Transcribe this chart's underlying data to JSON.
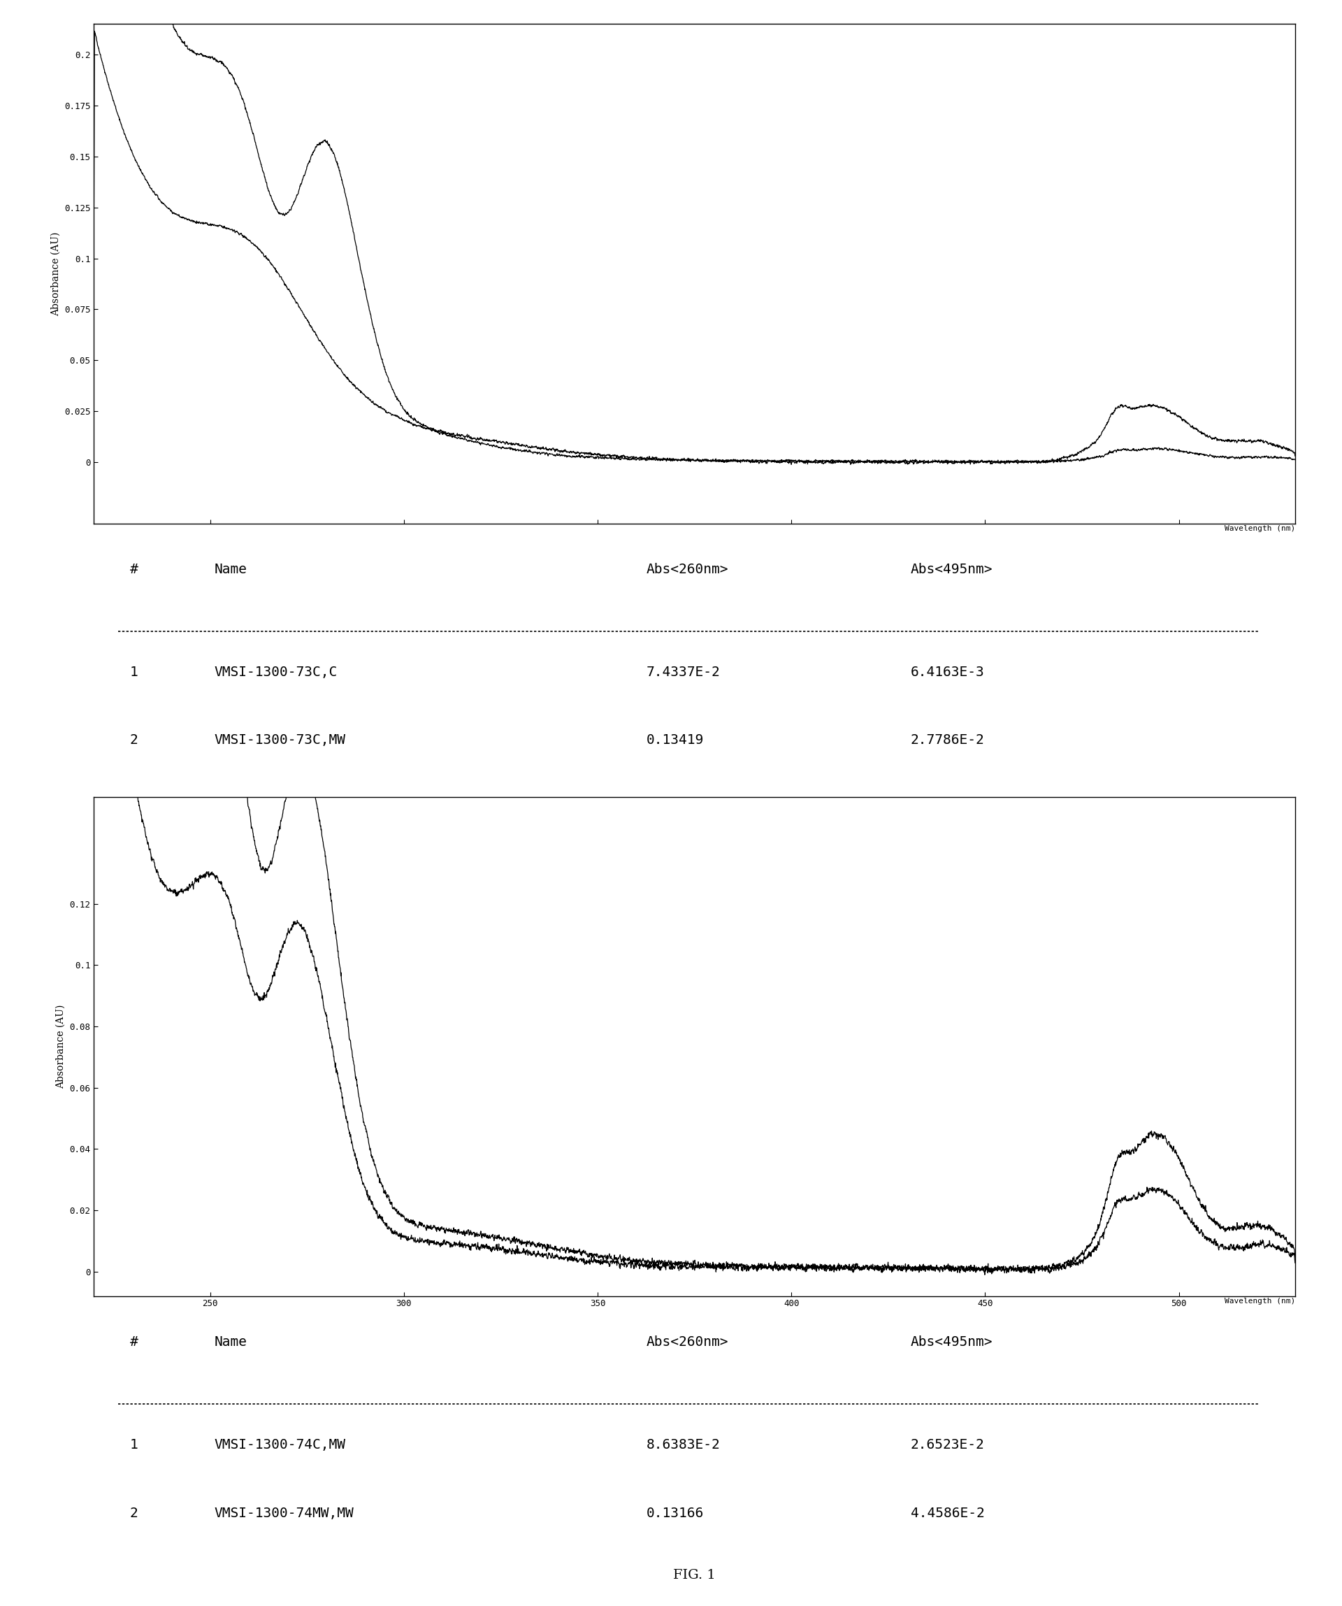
{
  "fig_width": 19.2,
  "fig_height": 22.97,
  "background_color": "#ffffff",
  "plot1": {
    "ylabel": "Absorbance (AU)",
    "xlabel": "Wavelength (nm)",
    "xlim": [
      220,
      530
    ],
    "ylim": [
      -0.03,
      0.215
    ],
    "yticks": [
      0.0,
      0.025,
      0.05,
      0.075,
      0.1,
      0.125,
      0.15,
      0.175,
      0.2
    ],
    "ytick_labels": [
      "0",
      "0.025",
      "0.05",
      "0.075",
      "0.1",
      "0.125",
      "0.15",
      "0.175",
      "0.2"
    ],
    "xticks": [
      250,
      300,
      350,
      400,
      450,
      500
    ]
  },
  "table1": {
    "header": [
      "#",
      "Name",
      "Abs<260nm>",
      "Abs<495nm>"
    ],
    "rows": [
      [
        "1",
        "VMSI-1300-73C,C",
        "7.4337E-2",
        "6.4163E-3"
      ],
      [
        "2",
        "VMSI-1300-73C,MW",
        "0.13419",
        "2.7786E-2"
      ]
    ]
  },
  "plot2": {
    "ylabel": "Absorbance (AU)",
    "xlabel": "Wavelength (nm)",
    "xlim": [
      220,
      530
    ],
    "ylim": [
      -0.008,
      0.155
    ],
    "yticks": [
      0.0,
      0.02,
      0.04,
      0.06,
      0.08,
      0.1,
      0.12
    ],
    "ytick_labels": [
      "0",
      "0.02",
      "0.04",
      "0.06",
      "0.08",
      "0.1",
      "0.12"
    ],
    "xticks": [
      250,
      300,
      350,
      400,
      450,
      500
    ]
  },
  "table2": {
    "header": [
      "#",
      "Name",
      "Abs<260nm>",
      "Abs<495nm>"
    ],
    "rows": [
      [
        "1",
        "VMSI-1300-74C,MW",
        "8.6383E-2",
        "2.6523E-2"
      ],
      [
        "2",
        "VMSI-1300-74MW,MW",
        "0.13166",
        "4.4586E-2"
      ]
    ]
  },
  "fig_label": "FIG. 1",
  "line_color": "#000000"
}
